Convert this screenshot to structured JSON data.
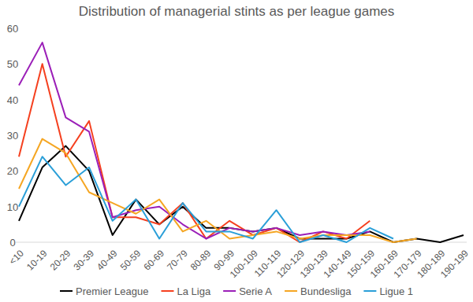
{
  "chart_data": {
    "type": "line",
    "title": "Distribution of managerial stints as per league games",
    "categories": [
      "<10",
      "10-19",
      "20-29",
      "30-39",
      "40-49",
      "50-59",
      "60-69",
      "70-79",
      "80-89",
      "90-99",
      "100-109",
      "110-119",
      "120-129",
      "130-139",
      "140-149",
      "150-159",
      "160-169",
      "170-179",
      "180-189",
      "190-199"
    ],
    "series": [
      {
        "name": "Premier League",
        "color": "#000000",
        "values": [
          6,
          21,
          27,
          20,
          2,
          12,
          5,
          10,
          4,
          4,
          3,
          4,
          1,
          1,
          1,
          3,
          0,
          1,
          0,
          2
        ]
      },
      {
        "name": "La Liga",
        "color": "#f5401f",
        "values": [
          24,
          50,
          24,
          34,
          7,
          7,
          5,
          11,
          1,
          6,
          2,
          4,
          0,
          3,
          1,
          6,
          null,
          null,
          null,
          null
        ]
      },
      {
        "name": "Serie A",
        "color": "#9b1fb8",
        "values": [
          44,
          56,
          35,
          31,
          7,
          9,
          10,
          5,
          1,
          4,
          3,
          4,
          2,
          3,
          2,
          3,
          null,
          null,
          null,
          null
        ]
      },
      {
        "name": "Bundesliga",
        "color": "#f5a623",
        "values": [
          15,
          29,
          25,
          14,
          11,
          8,
          12,
          3,
          6,
          1,
          2,
          3,
          1,
          2,
          2,
          2,
          0,
          1,
          null,
          null
        ]
      },
      {
        "name": "Ligue 1",
        "color": "#2a9fd8",
        "values": [
          10,
          24,
          16,
          21,
          6,
          12,
          1,
          11,
          3,
          3,
          1,
          9,
          0,
          2,
          0,
          4,
          1,
          null,
          null,
          null
        ]
      }
    ],
    "ylim": [
      0,
      60
    ],
    "yticks": [
      0,
      10,
      20,
      30,
      40,
      50,
      60
    ],
    "grid": false,
    "legend": "bottom"
  }
}
